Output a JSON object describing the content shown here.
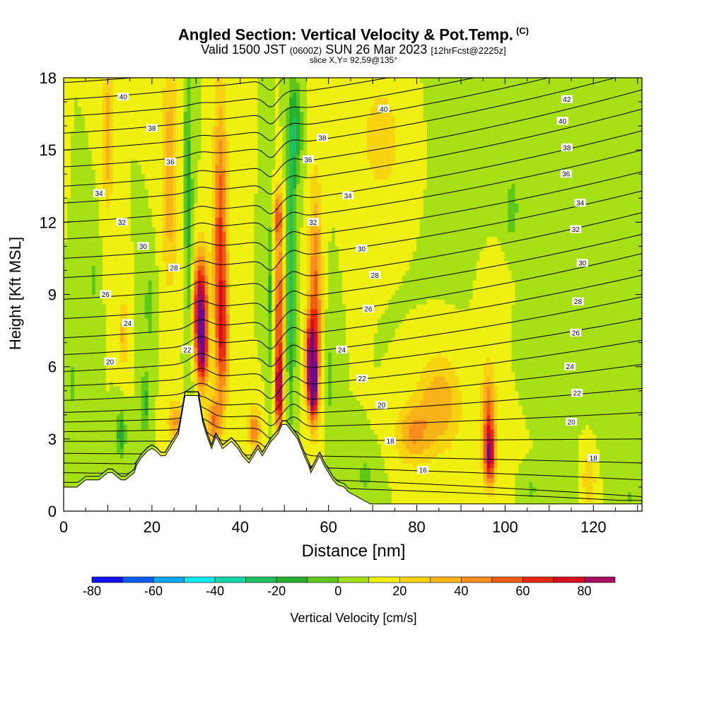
{
  "title": {
    "main": "Angled Section: Vertical Velocity & Pot.Temp.",
    "unit_tag": "(C)",
    "valid_prefix": "Valid 1500 JST",
    "valid_utc": "(0600Z)",
    "valid_date": "SUN 26 Mar 2023",
    "forecast": "[12hrFcst@2225z]",
    "slice": "slice X,Y= 92,59@135°"
  },
  "axes": {
    "xlabel": "Distance [nm]",
    "ylabel": "Height [Kft MSL]"
  },
  "colorbar": {
    "label": "Vertical Velocity [cm/s]",
    "tick_labels": [
      "-80",
      "-60",
      "-40",
      "-20",
      "0",
      "20",
      "40",
      "60",
      "80"
    ],
    "tick_values": [
      -80,
      -60,
      -40,
      -20,
      0,
      20,
      40,
      60,
      80
    ],
    "bounds": [
      -80,
      -70,
      -60,
      -50,
      -40,
      -30,
      -20,
      -10,
      0,
      10,
      20,
      30,
      40,
      50,
      60,
      70,
      80,
      90
    ],
    "colors": [
      "#1010f0",
      "#0a5ff5",
      "#09a8f0",
      "#10e8f0",
      "#12d8a8",
      "#1ec060",
      "#2ab030",
      "#5ec81a",
      "#a8e016",
      "#f0f010",
      "#f8d410",
      "#f8b418",
      "#f88c1c",
      "#f05c14",
      "#ec2a10",
      "#d80c20",
      "#a80c5c",
      "#680c8c"
    ]
  },
  "chart_data": {
    "type": "heatmap",
    "title": "Angled Section: Vertical Velocity & Pot.Temp.",
    "xlabel": "Distance [nm]",
    "ylabel": "Height [Kft MSL]",
    "xlim": [
      0,
      131
    ],
    "ylim": [
      0,
      18
    ],
    "x_ticks": [
      0,
      20,
      40,
      60,
      80,
      100,
      120
    ],
    "y_ticks": [
      0,
      3,
      6,
      9,
      12,
      15,
      18
    ],
    "x_tick_labels": [
      "0",
      "20",
      "40",
      "60",
      "80",
      "100",
      "120"
    ],
    "y_tick_labels": [
      "0",
      "3",
      "6",
      "9",
      "12",
      "15",
      "18"
    ],
    "background_value": 10,
    "fill_variable": "vertical velocity (cm/s)",
    "velocity_features": [
      {
        "x": 31,
        "y": 8.4,
        "wx": 1.6,
        "wy": 2.2,
        "v": 85
      },
      {
        "x": 31.5,
        "y": 6.3,
        "wx": 1.2,
        "wy": 1.3,
        "v": 50
      },
      {
        "x": 35.5,
        "y": 11.5,
        "wx": 1.6,
        "wy": 5.5,
        "v": 50
      },
      {
        "x": 36,
        "y": 7.2,
        "wx": 1.4,
        "wy": 2.6,
        "v": 40
      },
      {
        "x": 28.2,
        "y": 14,
        "wx": 1.0,
        "wy": 4.5,
        "v": -22
      },
      {
        "x": 28.6,
        "y": 8.5,
        "wx": 0.8,
        "wy": 4.0,
        "v": -12
      },
      {
        "x": 24,
        "y": 14,
        "wx": 1.8,
        "wy": 4.5,
        "v": 30
      },
      {
        "x": 19.5,
        "y": 8.5,
        "wx": 1.3,
        "wy": 1.8,
        "v": -15
      },
      {
        "x": 13.5,
        "y": 7.4,
        "wx": 1.0,
        "wy": 1.4,
        "v": 25
      },
      {
        "x": 7,
        "y": 9.6,
        "wx": 1.0,
        "wy": 1.8,
        "v": -12
      },
      {
        "x": 10,
        "y": 15.6,
        "wx": 1.2,
        "wy": 3.0,
        "v": 28
      },
      {
        "x": 48.8,
        "y": 5.0,
        "wx": 0.8,
        "wy": 1.6,
        "v": 75
      },
      {
        "x": 48.8,
        "y": 8.5,
        "wx": 1.0,
        "wy": 3.2,
        "v": 50
      },
      {
        "x": 48.6,
        "y": 12.3,
        "wx": 1.0,
        "wy": 1.0,
        "v": 40
      },
      {
        "x": 46.8,
        "y": 9.0,
        "wx": 0.7,
        "wy": 3.5,
        "v": -22
      },
      {
        "x": 51.5,
        "y": 10.0,
        "wx": 0.9,
        "wy": 5.5,
        "v": -40
      },
      {
        "x": 52.5,
        "y": 15.8,
        "wx": 1.5,
        "wy": 2.2,
        "v": -28
      },
      {
        "x": 56,
        "y": 6.4,
        "wx": 1.3,
        "wy": 1.7,
        "v": 68
      },
      {
        "x": 56.5,
        "y": 5.0,
        "wx": 1.0,
        "wy": 1.3,
        "v": 65
      },
      {
        "x": 57,
        "y": 9.0,
        "wx": 1.5,
        "wy": 4.5,
        "v": 42
      },
      {
        "x": 60.5,
        "y": 5.5,
        "wx": 1.2,
        "wy": 3.0,
        "v": -12
      },
      {
        "x": 43.2,
        "y": 3.4,
        "wx": 1.5,
        "wy": 0.8,
        "v": 40
      },
      {
        "x": 34,
        "y": 3.8,
        "wx": 1.6,
        "wy": 0.9,
        "v": 38
      },
      {
        "x": 25.5,
        "y": 3.7,
        "wx": 1.8,
        "wy": 0.9,
        "v": 32
      },
      {
        "x": 18.5,
        "y": 4.5,
        "wx": 1.0,
        "wy": 1.3,
        "v": -25
      },
      {
        "x": 13,
        "y": 3.2,
        "wx": 1.0,
        "wy": 1.0,
        "v": -30
      },
      {
        "x": 2,
        "y": 5.3,
        "wx": 1.0,
        "wy": 1.0,
        "v": -15
      },
      {
        "x": 96.5,
        "y": 2.3,
        "wx": 1.2,
        "wy": 1.2,
        "v": 65
      },
      {
        "x": 96.2,
        "y": 4.0,
        "wx": 1.6,
        "wy": 2.0,
        "v": 40
      },
      {
        "x": 85,
        "y": 4.5,
        "wx": 5.0,
        "wy": 2.0,
        "v": 28
      },
      {
        "x": 79,
        "y": 3.2,
        "wx": 4.0,
        "wy": 1.2,
        "v": 28
      },
      {
        "x": 101.5,
        "y": 12.5,
        "wx": 1.4,
        "wy": 1.2,
        "v": -18
      },
      {
        "x": 110,
        "y": 7.0,
        "wx": 12.0,
        "wy": 3.0,
        "v": -2
      },
      {
        "x": 120,
        "y": 9.5,
        "wx": 12.0,
        "wy": 3.0,
        "v": -3
      },
      {
        "x": 96,
        "y": 16.0,
        "wx": 9.0,
        "wy": 2.5,
        "v": -3
      },
      {
        "x": 115,
        "y": 12.0,
        "wx": 12.0,
        "wy": 2.0,
        "v": -1
      },
      {
        "x": 126,
        "y": 4.0,
        "wx": 4.0,
        "wy": 2.5,
        "v": -5
      },
      {
        "x": 72,
        "y": 15.5,
        "wx": 6.0,
        "wy": 3.0,
        "v": 14
      },
      {
        "x": 68,
        "y": 1.5,
        "wx": 3.0,
        "wy": 1.0,
        "v": -12
      },
      {
        "x": 106,
        "y": 0.9,
        "wx": 2.0,
        "wy": 0.7,
        "v": -12
      },
      {
        "x": 114,
        "y": 1.0,
        "wx": 1.5,
        "wy": 1.0,
        "v": -10
      },
      {
        "x": 128,
        "y": 0.6,
        "wx": 2.0,
        "wy": 0.5,
        "v": -10
      },
      {
        "x": 119,
        "y": 1.3,
        "wx": 1.5,
        "wy": 1.2,
        "v": 20
      },
      {
        "x": 100,
        "y": 8.5,
        "wx": 7.0,
        "wy": 5.0,
        "v": 2
      }
    ],
    "terrain": {
      "x": [
        0,
        3,
        5,
        8,
        10,
        11,
        13,
        14,
        16,
        16.5,
        17.5,
        19,
        20,
        21,
        22,
        23,
        24,
        25,
        26,
        27.5,
        30.5,
        31.5,
        32.5,
        33.5,
        34.5,
        36,
        38,
        39.5,
        40.5,
        42,
        43,
        44,
        45,
        46,
        47,
        48.5,
        49.5,
        50.5,
        53,
        54.5,
        55.5,
        56,
        58,
        59,
        60,
        61,
        62,
        63.5,
        64.5,
        65.5,
        66.5,
        67.5,
        68.5,
        69.5,
        70.5,
        72,
        131
      ],
      "y": [
        1.0,
        1.0,
        1.3,
        1.3,
        1.6,
        1.6,
        1.3,
        1.3,
        1.6,
        1.9,
        2.2,
        2.5,
        2.6,
        2.5,
        2.3,
        2.3,
        2.6,
        2.9,
        3.2,
        4.8,
        4.8,
        3.7,
        3.1,
        2.6,
        3.1,
        2.6,
        2.9,
        2.6,
        2.3,
        2.0,
        2.3,
        2.6,
        2.3,
        2.6,
        2.9,
        3.2,
        3.6,
        3.6,
        3.0,
        2.3,
        1.9,
        1.6,
        2.3,
        1.9,
        1.6,
        1.3,
        1.1,
        1.0,
        0.8,
        0.7,
        0.6,
        0.5,
        0.4,
        0.3,
        0.3,
        0.3,
        0.3
      ]
    },
    "isentropes": {
      "variable": "potential temperature (C)",
      "levels": [
        16,
        17,
        18,
        19,
        20,
        21,
        22,
        23,
        24,
        25,
        26,
        27,
        28,
        29,
        30,
        31,
        32,
        33,
        34,
        35,
        36,
        37,
        38,
        39,
        40,
        41,
        42,
        43
      ],
      "west_heights": [
        1.2,
        1.6,
        2.0,
        2.4,
        2.9,
        3.3,
        3.7,
        4.1,
        4.6,
        5.2,
        5.8,
        6.5,
        7.2,
        8.0,
        8.8,
        9.7,
        10.5,
        11.3,
        12.0,
        12.8,
        13.5,
        14.3,
        15.0,
        15.7,
        16.4,
        17.1,
        17.8,
        18.4
      ],
      "east_heights": [
        0.4,
        0.6,
        1.3,
        2.0,
        3.0,
        4.1,
        5.1,
        6.1,
        7.1,
        8.0,
        8.9,
        9.8,
        10.7,
        11.5,
        12.4,
        13.3,
        14.1,
        15.0,
        15.8,
        16.7,
        17.5,
        18.3,
        19.0,
        19.7,
        20.4,
        21.1,
        21.8,
        22.5
      ],
      "labels": [
        {
          "text": "40",
          "x": 13.5,
          "y": 17.2
        },
        {
          "text": "38",
          "x": 20.0,
          "y": 15.9
        },
        {
          "text": "36",
          "x": 24.2,
          "y": 14.5
        },
        {
          "text": "34",
          "x": 8.0,
          "y": 13.2
        },
        {
          "text": "32",
          "x": 13.2,
          "y": 12.0
        },
        {
          "text": "30",
          "x": 18.0,
          "y": 11.0
        },
        {
          "text": "28",
          "x": 25.0,
          "y": 10.1
        },
        {
          "text": "26",
          "x": 9.5,
          "y": 9.0
        },
        {
          "text": "24",
          "x": 14.5,
          "y": 7.8
        },
        {
          "text": "22",
          "x": 28.0,
          "y": 6.7
        },
        {
          "text": "20",
          "x": 10.5,
          "y": 6.2
        },
        {
          "text": "40",
          "x": 72.5,
          "y": 16.7
        },
        {
          "text": "38",
          "x": 58.6,
          "y": 15.5
        },
        {
          "text": "36",
          "x": 55.4,
          "y": 14.6
        },
        {
          "text": "34",
          "x": 64.4,
          "y": 13.1
        },
        {
          "text": "32",
          "x": 56.5,
          "y": 12.0
        },
        {
          "text": "30",
          "x": 67.5,
          "y": 10.9
        },
        {
          "text": "28",
          "x": 70.5,
          "y": 9.8
        },
        {
          "text": "26",
          "x": 69.0,
          "y": 8.4
        },
        {
          "text": "24",
          "x": 63.0,
          "y": 6.7
        },
        {
          "text": "22",
          "x": 67.6,
          "y": 5.5
        },
        {
          "text": "20",
          "x": 72.0,
          "y": 4.4
        },
        {
          "text": "18",
          "x": 74.0,
          "y": 2.9
        },
        {
          "text": "16",
          "x": 81.4,
          "y": 1.7
        },
        {
          "text": "42",
          "x": 114.0,
          "y": 17.1
        },
        {
          "text": "40",
          "x": 113.0,
          "y": 16.2
        },
        {
          "text": "38",
          "x": 114.0,
          "y": 15.1
        },
        {
          "text": "36",
          "x": 113.8,
          "y": 14.0
        },
        {
          "text": "34",
          "x": 117.0,
          "y": 12.8
        },
        {
          "text": "32",
          "x": 116.0,
          "y": 11.7
        },
        {
          "text": "30",
          "x": 117.5,
          "y": 10.3
        },
        {
          "text": "28",
          "x": 116.5,
          "y": 8.7
        },
        {
          "text": "26",
          "x": 116.0,
          "y": 7.4
        },
        {
          "text": "24",
          "x": 114.7,
          "y": 6.0
        },
        {
          "text": "22",
          "x": 116.3,
          "y": 4.9
        },
        {
          "text": "20",
          "x": 115.0,
          "y": 3.7
        },
        {
          "text": "18",
          "x": 120.0,
          "y": 2.2
        }
      ]
    }
  }
}
